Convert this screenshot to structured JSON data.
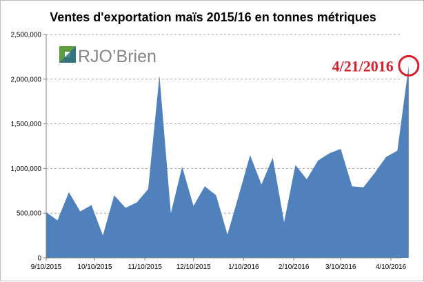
{
  "chart_data": {
    "type": "area",
    "title": "Ventes d'exportation  maïs 2015/16  en tonnes métriques",
    "xlabel": "",
    "ylabel": "",
    "ylim": [
      0,
      2500000
    ],
    "y_ticks": [
      0,
      500000,
      1000000,
      1500000,
      2000000,
      2500000
    ],
    "y_tick_labels": [
      "0",
      "500,000",
      "1,000,000",
      "1,500,000",
      "2,000,000",
      "2,500,000"
    ],
    "x_tick_labels": [
      "9/10/2015",
      "10/10/2015",
      "11/10/2015",
      "12/10/2015",
      "1/10/2016",
      "2/10/2016",
      "3/10/2016",
      "4/10/2016"
    ],
    "x": [
      "9/10/2015",
      "9/17/2015",
      "9/24/2015",
      "10/1/2015",
      "10/8/2015",
      "10/15/2015",
      "10/22/2015",
      "10/29/2015",
      "11/5/2015",
      "11/12/2015",
      "11/19/2015",
      "11/26/2015",
      "12/3/2015",
      "12/10/2015",
      "12/17/2015",
      "12/24/2015",
      "12/31/2015",
      "1/7/2016",
      "1/14/2016",
      "1/21/2016",
      "1/28/2016",
      "2/4/2016",
      "2/11/2016",
      "2/18/2016",
      "2/25/2016",
      "3/3/2016",
      "3/10/2016",
      "3/17/2016",
      "3/24/2016",
      "3/31/2016",
      "4/7/2016",
      "4/14/2016",
      "4/21/2016"
    ],
    "series": [
      {
        "values": [
          510000,
          420000,
          735000,
          520000,
          590000,
          250000,
          700000,
          560000,
          620000,
          770000,
          2040000,
          500000,
          1020000,
          580000,
          800000,
          700000,
          260000,
          700000,
          1150000,
          820000,
          1120000,
          400000,
          1040000,
          880000,
          1090000,
          1170000,
          1220000,
          800000,
          790000,
          950000,
          1130000,
          1200000,
          2150000
        ],
        "color": "#4f81bd"
      }
    ],
    "grid": true,
    "grid_color": "#a6a6a6",
    "legend": "none",
    "callout": {
      "label": "4/21/2016",
      "target_x": "4/21/2016",
      "color": "#d9202a"
    }
  },
  "logo": {
    "text": "RJO’Brien",
    "text_color": "#868686",
    "mark_colors": [
      "#5d9e3f",
      "#2a6f86"
    ]
  }
}
